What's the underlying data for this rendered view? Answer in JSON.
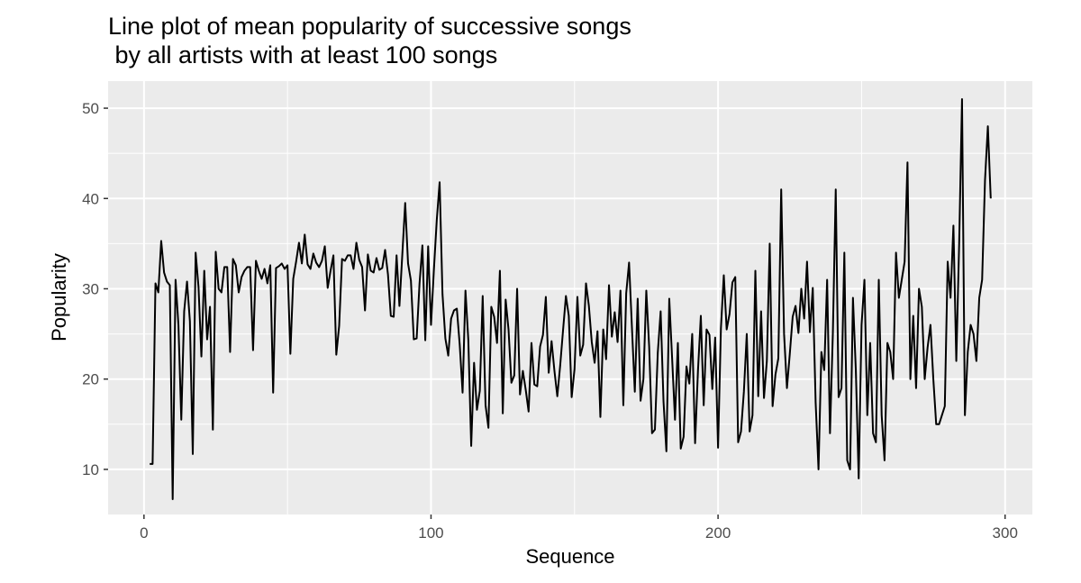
{
  "chart_data": {
    "type": "line",
    "title_line1": "Line plot of mean popularity of successive songs",
    "title_line2": " by all artists with at least 100 songs",
    "xlabel": "Sequence",
    "ylabel": "Popularity",
    "xlim": [
      -12.5,
      309.5
    ],
    "ylim": [
      5.0,
      53.0
    ],
    "xticks": [
      0,
      100,
      200,
      300
    ],
    "xtick_labels": [
      "0",
      "100",
      "200",
      "300"
    ],
    "xminor": [
      50,
      150,
      250
    ],
    "yticks": [
      10,
      20,
      30,
      40,
      50
    ],
    "ytick_labels": [
      "10",
      "20",
      "30",
      "40",
      "50"
    ],
    "yminor": [
      15,
      25,
      35,
      45
    ],
    "grid": true,
    "background": "#ebebeb",
    "grid_color": "#ffffff",
    "line_color": "#000000",
    "series": [
      {
        "x": [
          2,
          3,
          4,
          5,
          6,
          7,
          8,
          9,
          10,
          11,
          12,
          13,
          14,
          15,
          16,
          17,
          18,
          19,
          20,
          21,
          22,
          23,
          24,
          25,
          26,
          27,
          28,
          29,
          30,
          31,
          32,
          33,
          34,
          35,
          36,
          37,
          38,
          39,
          40,
          41,
          42,
          43,
          44,
          45,
          46,
          47,
          48,
          49,
          50,
          51,
          52,
          53,
          54,
          55,
          56,
          57,
          58,
          59,
          60,
          61,
          62,
          63,
          64,
          65,
          66,
          67,
          68,
          69,
          70,
          71,
          72,
          73,
          74,
          75,
          76,
          77,
          78,
          79,
          80,
          81,
          82,
          83,
          84,
          85,
          86,
          87,
          88,
          89,
          90,
          91,
          92,
          93,
          94,
          95,
          96,
          97,
          98,
          99,
          100,
          101,
          102,
          103,
          104,
          105,
          106,
          107,
          108,
          109,
          110,
          111,
          112,
          113,
          114,
          115,
          116,
          117,
          118,
          119,
          120,
          121,
          122,
          123,
          124,
          125,
          126,
          127,
          128,
          129,
          130,
          131,
          132,
          133,
          134,
          135,
          136,
          137,
          138,
          139,
          140,
          141,
          142,
          143,
          144,
          145,
          146,
          147,
          148,
          149,
          150,
          151,
          152,
          153,
          154,
          155,
          156,
          157,
          158,
          159,
          160,
          161,
          162,
          163,
          164,
          165,
          166,
          167,
          168,
          169,
          170,
          171,
          172,
          173,
          174,
          175,
          176,
          177,
          178,
          179,
          180,
          181,
          182,
          183,
          184,
          185,
          186,
          187,
          188,
          189,
          190,
          191,
          192,
          193,
          194,
          195,
          196,
          197,
          198,
          199,
          200,
          201,
          202,
          203,
          204,
          205,
          206,
          207,
          208,
          209,
          210,
          211,
          212,
          213,
          214,
          215,
          216,
          217,
          218,
          219,
          220,
          221,
          222,
          223,
          224,
          225,
          226,
          227,
          228,
          229,
          230,
          231,
          232,
          233,
          234,
          235,
          236,
          237,
          238,
          239,
          240,
          241,
          242,
          243,
          244,
          245,
          246,
          247,
          248,
          249,
          250,
          251,
          252,
          253,
          254,
          255,
          256,
          257,
          258,
          259,
          260,
          261,
          262,
          263,
          264,
          265,
          266,
          267,
          268,
          269,
          270,
          271,
          272,
          273,
          274,
          275,
          276,
          277,
          278,
          279,
          280,
          281,
          282,
          283,
          284,
          285,
          286,
          287,
          288,
          289,
          290,
          291,
          292,
          293,
          294,
          295
        ],
        "y": [
          10.6,
          10.6,
          30.6,
          29.6,
          35.3,
          31.8,
          30.8,
          30.4,
          6.7,
          31.0,
          26.0,
          15.5,
          27.5,
          30.8,
          26.4,
          11.7,
          34.0,
          30.2,
          22.5,
          32.0,
          24.4,
          28.0,
          14.4,
          34.1,
          30.0,
          29.6,
          32.4,
          32.4,
          23.0,
          33.3,
          32.6,
          29.6,
          31.3,
          32.0,
          32.4,
          32.4,
          23.2,
          33.1,
          32.0,
          31.1,
          32.2,
          30.6,
          32.6,
          18.5,
          32.3,
          32.5,
          32.8,
          32.2,
          32.6,
          22.8,
          31.1,
          33.0,
          35.1,
          32.8,
          36.0,
          32.7,
          32.2,
          33.9,
          32.9,
          32.4,
          33.1,
          34.7,
          30.1,
          32.0,
          33.7,
          22.7,
          25.9,
          33.3,
          33.1,
          33.7,
          33.7,
          32.2,
          35.1,
          33.2,
          32.4,
          27.6,
          33.8,
          32.0,
          31.8,
          33.4,
          32.1,
          32.3,
          34.3,
          31.6,
          27.0,
          26.9,
          33.7,
          28.1,
          33.8,
          39.5,
          32.8,
          30.9,
          24.4,
          24.5,
          30.6,
          34.8,
          24.3,
          34.7,
          26.0,
          32.1,
          37.6,
          41.8,
          29.4,
          24.5,
          22.6,
          26.7,
          27.6,
          27.8,
          23.8,
          18.5,
          29.8,
          24.3,
          12.6,
          21.8,
          16.6,
          18.7,
          29.2,
          17.1,
          14.6,
          28.0,
          26.9,
          24.0,
          32.0,
          16.2,
          28.8,
          25.5,
          19.6,
          20.4,
          30.0,
          18.3,
          20.9,
          18.8,
          16.4,
          24.0,
          19.4,
          19.2,
          23.6,
          24.9,
          29.1,
          20.7,
          24.2,
          20.9,
          18.1,
          21.5,
          25.4,
          29.2,
          27.0,
          18.0,
          21.1,
          29.1,
          22.6,
          23.8,
          30.6,
          28.1,
          24.1,
          21.8,
          25.3,
          15.8,
          25.5,
          22.2,
          30.4,
          24.7,
          27.4,
          24.1,
          29.8,
          17.1,
          29.5,
          32.9,
          25.7,
          18.6,
          28.9,
          17.6,
          20.0,
          29.8,
          23.6,
          14.0,
          14.4,
          22.9,
          27.5,
          17.5,
          12.0,
          28.9,
          22.3,
          15.5,
          24.0,
          12.3,
          13.6,
          21.4,
          19.5,
          25.0,
          12.9,
          20.9,
          27.0,
          17.1,
          25.5,
          24.9,
          18.9,
          24.6,
          12.4,
          25.6,
          31.5,
          25.5,
          27.2,
          30.7,
          31.3,
          13.0,
          14.2,
          18.6,
          25.0,
          14.2,
          16.0,
          32.0,
          18.1,
          27.5,
          17.9,
          22.0,
          35.0,
          17.0,
          20.5,
          22.3,
          41.0,
          25.0,
          19.0,
          22.8,
          26.9,
          28.1,
          25.1,
          30.0,
          26.7,
          33.0,
          25.2,
          30.1,
          17.4,
          10.0,
          23.0,
          21.0,
          31.0,
          14.0,
          25.1,
          41.0,
          18.0,
          19.0,
          34.0,
          11.0,
          10.0,
          29.0,
          21.0,
          9.0,
          26.0,
          31.0,
          16.0,
          24.0,
          14.0,
          13.0,
          31.0,
          16.0,
          11.0,
          24.0,
          23.0,
          20.0,
          34.0,
          29.0,
          31.0,
          33.0,
          44.0,
          20.0,
          27.0,
          19.0,
          30.0,
          28.0,
          20.0,
          23.5,
          26.0,
          20.0,
          15.0,
          15.0,
          16.0,
          17.0,
          33.0,
          29.0,
          37.0,
          22.0,
          35.0,
          51.0,
          16.0,
          23.0,
          26.0,
          25.0,
          22.0,
          29.0,
          31.0,
          42.0,
          48.0,
          40.0
        ]
      }
    ]
  }
}
